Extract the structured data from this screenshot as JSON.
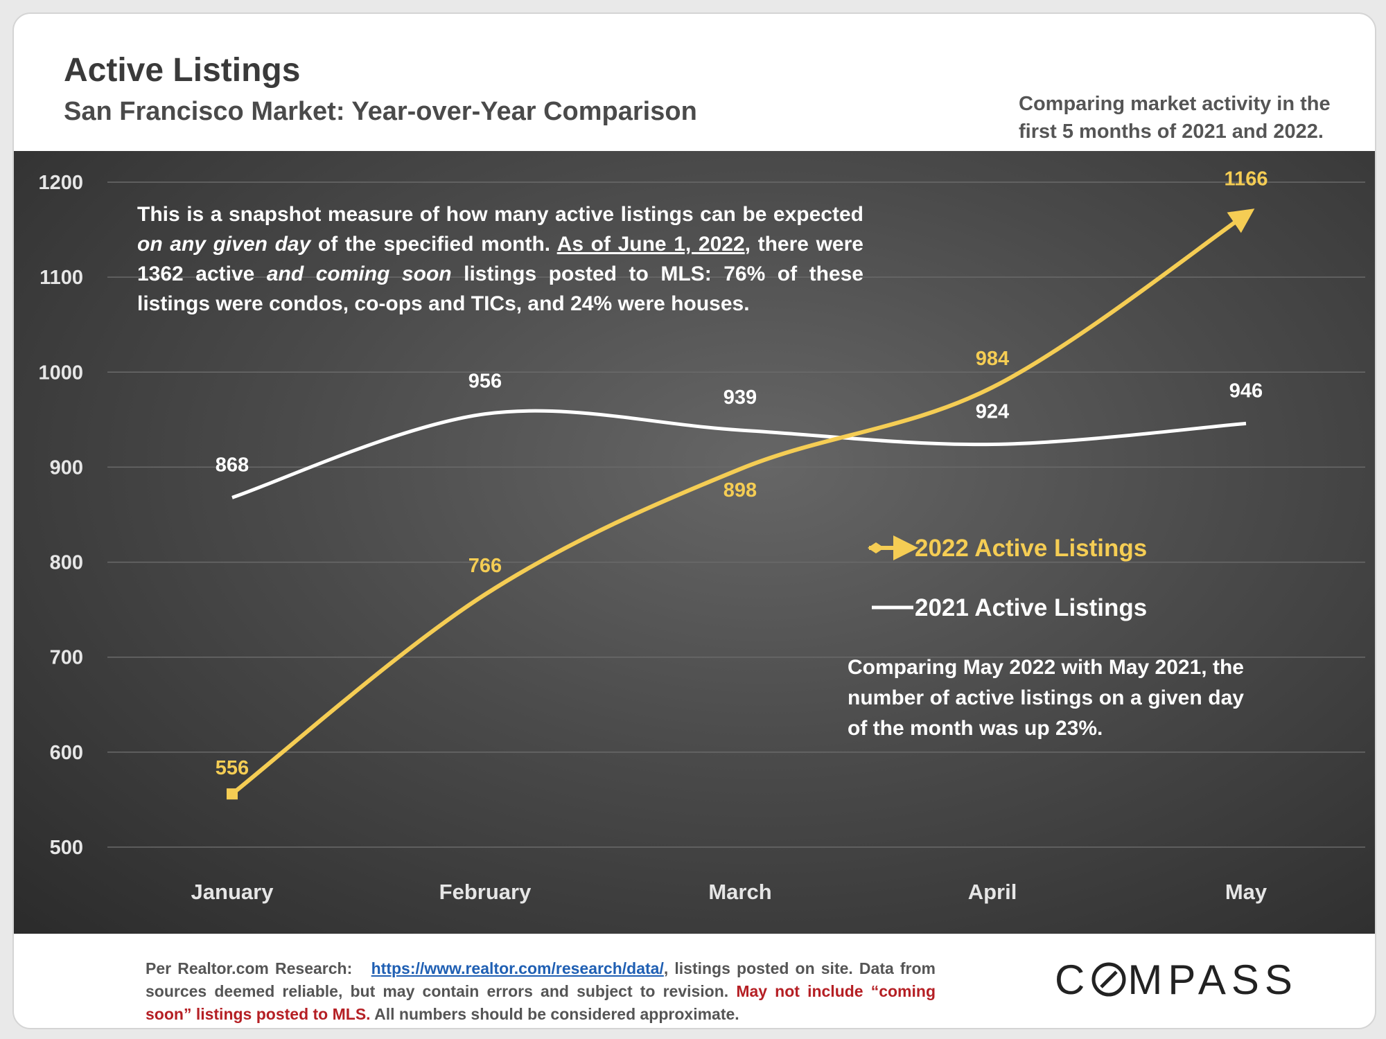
{
  "header": {
    "title": "Active Listings",
    "subtitle": "San Francisco Market: Year-over-Year Comparison",
    "intro_line1": "Comparing market activity in the",
    "intro_line2": "first 5 months of 2021 and 2022."
  },
  "notes": {
    "snapshot_a": "This is a snapshot measure of how many active listings can be expected",
    "snapshot_b": "on any given day",
    "snapshot_c": "of the specified month.",
    "snapshot_d": "As of June 1, 2022",
    "snapshot_e": ", there were 1362 active",
    "snapshot_f": "and coming soon",
    "snapshot_g": "listings posted to MLS: 76% of these listings were condos, co-ops and TICs, and 24% were houses.",
    "comparison": "Comparing May 2022 with May 2021, the number of active listings on a given day of the month was up 23%."
  },
  "footer": {
    "prefix": "Per Realtor.com Research:",
    "link_text": "https://www.realtor.com/research/data/",
    "after_link": ", listings posted on site. Data from sources deemed reliable, but may contain errors and subject to revision.",
    "warning": "May not include “coming soon” listings posted to MLS.",
    "suffix": "All numbers should be considered approximate."
  },
  "brand": {
    "logo_text_a": "C",
    "logo_text_b": "MPASS"
  },
  "colors": {
    "series_2022": "#f5cd54",
    "series_2021": "#ffffff",
    "grid": "#6a6a6a",
    "axis_text": "#e6e6e6"
  },
  "chart_data": {
    "type": "line",
    "categories": [
      "January",
      "February",
      "March",
      "April",
      "May"
    ],
    "series": [
      {
        "name": "2022 Active Listings",
        "values": [
          556,
          766,
          898,
          984,
          1166
        ]
      },
      {
        "name": "2021 Active Listings",
        "values": [
          868,
          956,
          939,
          924,
          946
        ]
      }
    ],
    "yticks": [
      500,
      600,
      700,
      800,
      900,
      1000,
      1100,
      1200
    ],
    "ylim": [
      500,
      1200
    ],
    "grid": true,
    "legend": "middle-right"
  }
}
